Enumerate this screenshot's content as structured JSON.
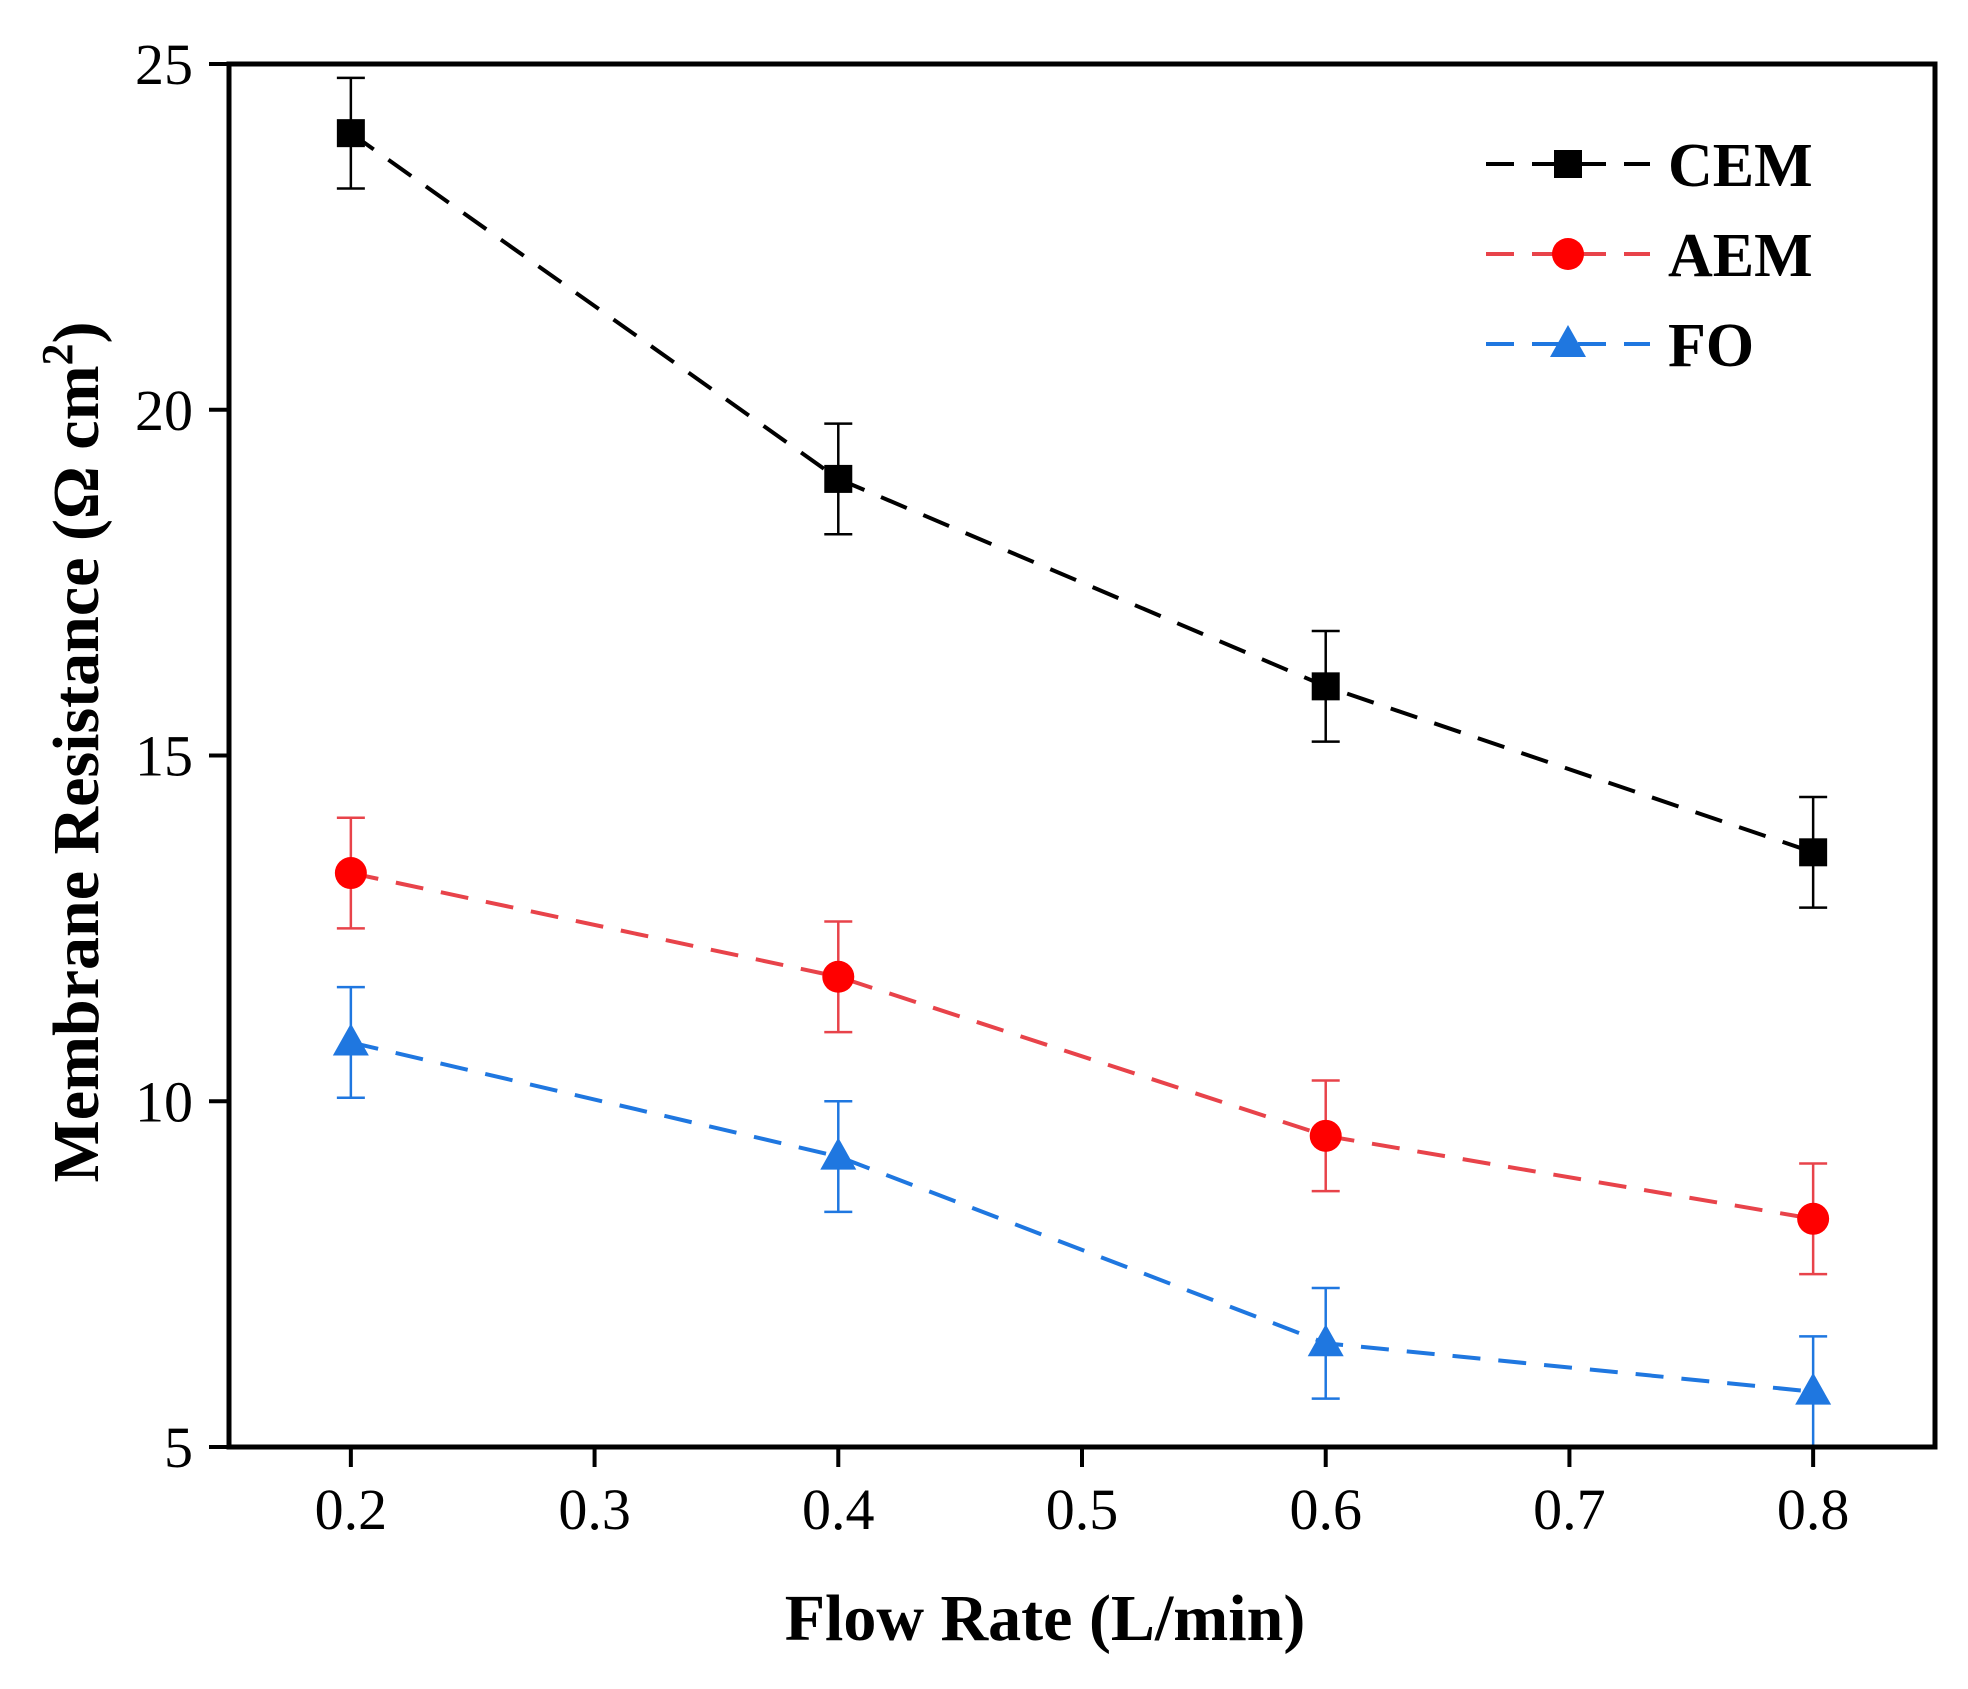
{
  "chart_data": {
    "type": "line",
    "title": "",
    "xlabel": "Flow Rate (L/min)",
    "ylabel_main": "Membrane Resistance (Ω cm",
    "ylabel_sup": "2",
    "ylabel_close": ")",
    "xlim": [
      0.15,
      0.85
    ],
    "ylim": [
      5,
      25
    ],
    "x_ticks": [
      0.2,
      0.3,
      0.4,
      0.5,
      0.6,
      0.7,
      0.8
    ],
    "x_tick_labels": [
      "0.2",
      "0.3",
      "0.4",
      "0.5",
      "0.6",
      "0.7",
      "0.8"
    ],
    "y_ticks": [
      5,
      10,
      15,
      20,
      25
    ],
    "y_tick_labels": [
      "5",
      "10",
      "15",
      "20",
      "25"
    ],
    "grid": false,
    "legend_position": "top-right",
    "x": [
      0.2,
      0.4,
      0.6,
      0.8
    ],
    "series": [
      {
        "name": "CEM",
        "marker": "square",
        "color": "#000000",
        "values": [
          24.0,
          19.0,
          16.0,
          13.6
        ],
        "errors": [
          0.8,
          0.8,
          0.8,
          0.8
        ]
      },
      {
        "name": "AEM",
        "marker": "circle",
        "color": "#ff0000",
        "line_color": "#e8434a",
        "values": [
          13.3,
          11.8,
          9.5,
          8.3
        ],
        "errors": [
          0.8,
          0.8,
          0.8,
          0.8
        ]
      },
      {
        "name": "FO",
        "marker": "triangle",
        "color": "#1f77e0",
        "line_color": "#1f77e0",
        "values": [
          10.85,
          9.2,
          6.5,
          5.8
        ],
        "errors": [
          0.8,
          0.8,
          0.8,
          0.8
        ]
      }
    ]
  }
}
